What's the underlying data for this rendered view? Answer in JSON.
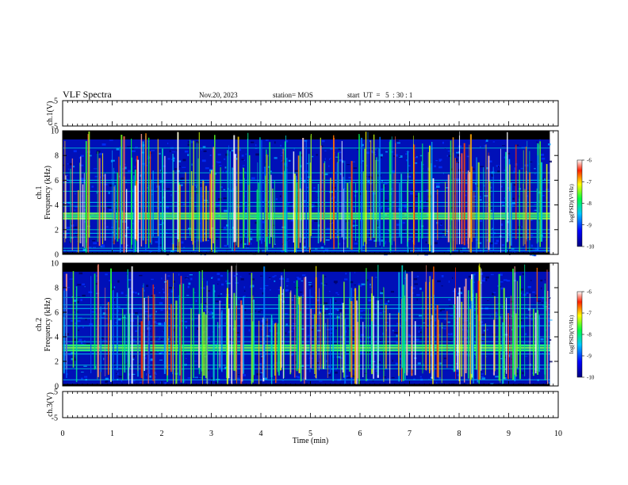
{
  "header": {
    "title": "VLF Spectra",
    "date": "Nov.20, 2023",
    "station": "station= MOS",
    "start": "start  UT  =   5  : 30 : 1"
  },
  "chart_data": [
    {
      "type": "line",
      "panel": "ch1-voltage",
      "ylabel": "ch.1(V)",
      "ylim": [
        -5,
        5
      ],
      "yticks": [
        "5",
        "-5"
      ],
      "xlim": [
        0,
        10
      ],
      "series": [
        {
          "x": [
            0,
            9.83
          ],
          "y": [
            0,
            0
          ]
        }
      ]
    },
    {
      "type": "heatmap",
      "panel": "ch1-spectrogram",
      "ylabel": "ch.1\nFrequency (kHz)",
      "xlim": [
        0,
        10
      ],
      "ylim": [
        0,
        10
      ],
      "yticks": [
        "0",
        "2",
        "4",
        "6",
        "8",
        "10"
      ],
      "data_end_min": 9.83,
      "colorbar": {
        "label": "log(PSD)(V²/Hz)",
        "range": [
          -10,
          -6
        ],
        "ticks": [
          "-6",
          "-7",
          "-8",
          "-9",
          "-10"
        ]
      },
      "bands_khz": [
        0.3,
        0.5,
        1.4,
        1.7,
        2.0,
        2.9,
        3.1,
        3.3,
        3.9,
        4.2,
        5.1,
        5.8,
        6.0,
        6.6,
        8.6
      ]
    },
    {
      "type": "heatmap",
      "panel": "ch2-spectrogram",
      "ylabel": "ch.2\nFrequency (kHz)",
      "xlim": [
        0,
        10
      ],
      "ylim": [
        0,
        10
      ],
      "yticks": [
        "0",
        "2",
        "4",
        "6",
        "8",
        "10"
      ],
      "data_end_min": 9.83,
      "colorbar": {
        "label": "log(PSD)(V²/Hz)",
        "range": [
          -10,
          -6
        ],
        "ticks": [
          "-6",
          "-7",
          "-8",
          "-9",
          "-10"
        ]
      },
      "bands_khz": [
        0.5,
        1.4,
        1.7,
        2.6,
        2.9,
        3.1,
        3.3,
        3.6,
        4.0,
        4.9,
        5.5,
        5.8,
        6.3,
        6.6,
        7.2
      ]
    },
    {
      "type": "line",
      "panel": "ch3-voltage",
      "ylabel": "ch.3(V)",
      "ylim": [
        -5,
        5
      ],
      "yticks": [
        "5",
        "-5"
      ],
      "xlim": [
        0,
        10
      ],
      "xlabel": "Time (min)",
      "xticks": [
        "0",
        "1",
        "2",
        "3",
        "4",
        "5",
        "6",
        "7",
        "8",
        "9",
        "10"
      ],
      "series": [
        {
          "x": [
            0,
            9.83
          ],
          "y": [
            0,
            0
          ]
        }
      ]
    }
  ],
  "colors": {
    "background_dark": "#000000",
    "low": "#0000c8",
    "mid": "#00ffff",
    "green": "#00ff00",
    "yellow": "#ffff00",
    "high": "#ff0000"
  }
}
